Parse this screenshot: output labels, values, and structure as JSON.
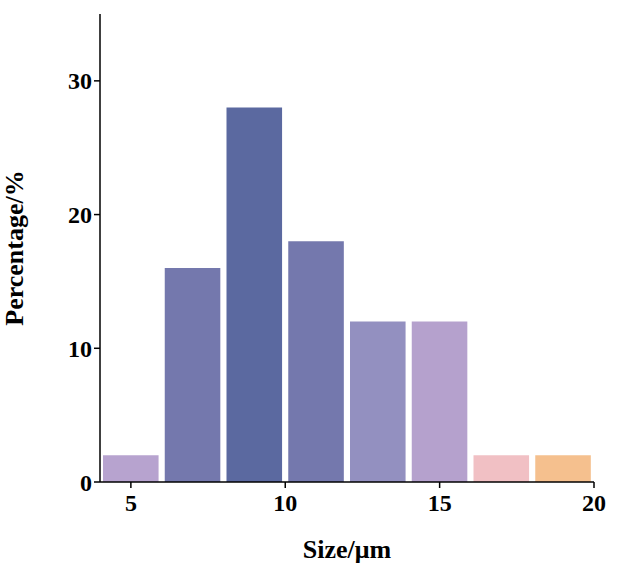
{
  "chart_data": {
    "type": "histogram",
    "x_label": "Size/μm",
    "y_label": "Percentage/%",
    "bins": [
      4,
      6,
      8,
      10,
      12,
      14,
      16,
      18,
      20
    ],
    "values": [
      2,
      16,
      28,
      18,
      12,
      12,
      2,
      2
    ],
    "colors": [
      "#b7a3cf",
      "#7478ad",
      "#5b69a0",
      "#7478ad",
      "#9390c0",
      "#b5a1cd",
      "#f1c0c4",
      "#f5c08e"
    ],
    "xlim": [
      4,
      20
    ],
    "xticks": [
      5,
      10,
      15,
      20
    ],
    "ylim": [
      0,
      35
    ],
    "yticks": [
      0,
      10,
      20,
      30
    ],
    "grid": false
  }
}
